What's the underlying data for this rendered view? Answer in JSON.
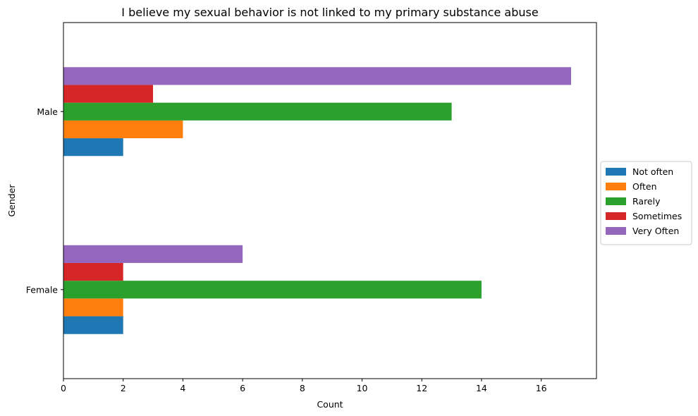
{
  "chart_data": {
    "type": "bar",
    "orientation": "horizontal",
    "title": "I believe my sexual behavior is not linked to my primary substance abuse",
    "xlabel": "Count",
    "ylabel": "Gender",
    "categories": [
      "Female",
      "Male"
    ],
    "xlim": [
      0,
      17.85
    ],
    "xticks": [
      0,
      2,
      4,
      6,
      8,
      10,
      12,
      14,
      16
    ],
    "grid": false,
    "legend_position": "center-right-outside",
    "series": [
      {
        "name": "Not often",
        "color": "#1f77b4",
        "values": [
          2,
          2
        ]
      },
      {
        "name": "Often",
        "color": "#ff7f0e",
        "values": [
          2,
          4
        ]
      },
      {
        "name": "Rarely",
        "color": "#2ca02c",
        "values": [
          14,
          13
        ]
      },
      {
        "name": "Sometimes",
        "color": "#d62728",
        "values": [
          2,
          3
        ]
      },
      {
        "name": "Very Often",
        "color": "#9467bd",
        "values": [
          6,
          17
        ]
      }
    ]
  }
}
